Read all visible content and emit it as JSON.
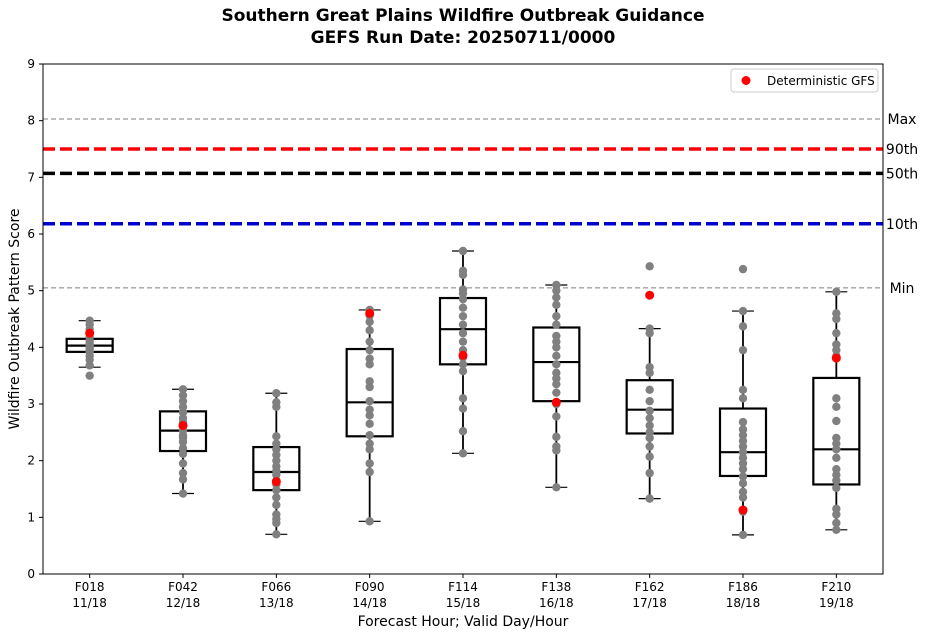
{
  "titles": {
    "line1": "Southern Great Plains Wildfire Outbreak Guidance",
    "line2": "GEFS Run Date: 20250711/0000"
  },
  "chart_data": {
    "type": "box",
    "xlabel": "Forecast Hour; Valid Day/Hour",
    "ylabel": "Wildfire Outbreak Pattern Score",
    "ylim": [
      0,
      9
    ],
    "yticks": [
      0,
      1,
      2,
      3,
      4,
      5,
      6,
      7,
      8,
      9
    ],
    "categories": [
      {
        "hour": "F018",
        "valid": "11/18"
      },
      {
        "hour": "F042",
        "valid": "12/18"
      },
      {
        "hour": "F066",
        "valid": "13/18"
      },
      {
        "hour": "F090",
        "valid": "14/18"
      },
      {
        "hour": "F114",
        "valid": "15/18"
      },
      {
        "hour": "F138",
        "valid": "16/18"
      },
      {
        "hour": "F162",
        "valid": "17/18"
      },
      {
        "hour": "F186",
        "valid": "18/18"
      },
      {
        "hour": "F210",
        "valid": "19/18"
      }
    ],
    "boxes": [
      {
        "whislo": 3.65,
        "q1": 3.92,
        "med": 4.03,
        "q3": 4.15,
        "whishi": 4.47
      },
      {
        "whislo": 1.42,
        "q1": 2.17,
        "med": 2.53,
        "q3": 2.87,
        "whishi": 3.26
      },
      {
        "whislo": 0.7,
        "q1": 1.48,
        "med": 1.8,
        "q3": 2.24,
        "whishi": 3.19
      },
      {
        "whislo": 0.93,
        "q1": 2.43,
        "med": 3.03,
        "q3": 3.97,
        "whishi": 4.66
      },
      {
        "whislo": 2.13,
        "q1": 3.7,
        "med": 4.32,
        "q3": 4.87,
        "whishi": 5.7
      },
      {
        "whislo": 1.53,
        "q1": 3.05,
        "med": 3.74,
        "q3": 4.35,
        "whishi": 5.1
      },
      {
        "whislo": 1.33,
        "q1": 2.48,
        "med": 2.9,
        "q3": 3.42,
        "whishi": 4.33
      },
      {
        "whislo": 0.69,
        "q1": 1.73,
        "med": 2.15,
        "q3": 2.92,
        "whishi": 4.64
      },
      {
        "whislo": 0.78,
        "q1": 1.58,
        "med": 2.2,
        "q3": 3.46,
        "whishi": 4.98
      }
    ],
    "members": [
      [
        3.5,
        3.68,
        3.78,
        3.85,
        3.92,
        3.97,
        4.0,
        4.03,
        4.08,
        4.12,
        4.18,
        4.25,
        4.32,
        4.4,
        4.47
      ],
      [
        1.42,
        1.67,
        1.78,
        1.95,
        2.12,
        2.22,
        2.33,
        2.4,
        2.45,
        2.53,
        2.6,
        2.68,
        2.75,
        2.85,
        2.95,
        3.05,
        3.15,
        3.26
      ],
      [
        0.7,
        0.9,
        0.97,
        1.05,
        1.22,
        1.35,
        1.48,
        1.58,
        1.65,
        1.75,
        1.82,
        1.9,
        2.0,
        2.1,
        2.2,
        2.3,
        2.43,
        2.95,
        3.03,
        3.19
      ],
      [
        0.93,
        1.8,
        1.95,
        2.2,
        2.3,
        2.45,
        2.65,
        2.8,
        2.9,
        3.05,
        3.3,
        3.4,
        3.7,
        3.8,
        3.95,
        4.1,
        4.3,
        4.45,
        4.56,
        4.66
      ],
      [
        2.13,
        2.52,
        2.92,
        3.1,
        3.58,
        3.7,
        3.82,
        3.95,
        4.1,
        4.25,
        4.4,
        4.55,
        4.7,
        4.85,
        4.95,
        5.02,
        5.28,
        5.35,
        5.7
      ],
      [
        1.53,
        2.18,
        2.25,
        2.42,
        2.78,
        3.0,
        3.2,
        3.35,
        3.45,
        3.55,
        3.7,
        3.85,
        4.0,
        4.1,
        4.2,
        4.4,
        4.55,
        4.75,
        4.88,
        5.0,
        5.1
      ],
      [
        1.33,
        1.78,
        2.07,
        2.25,
        2.4,
        2.5,
        2.62,
        2.75,
        2.88,
        3.05,
        3.25,
        3.55,
        3.65,
        4.25,
        4.33,
        5.43
      ],
      [
        0.69,
        1.1,
        1.35,
        1.45,
        1.6,
        1.72,
        1.85,
        1.95,
        2.05,
        2.15,
        2.25,
        2.35,
        2.45,
        2.55,
        2.68,
        3.1,
        3.25,
        3.95,
        4.37,
        4.64,
        5.38
      ],
      [
        0.78,
        0.9,
        1.05,
        1.15,
        1.52,
        1.65,
        1.75,
        1.85,
        2.05,
        2.2,
        2.3,
        2.4,
        2.7,
        2.95,
        3.1,
        3.85,
        3.95,
        4.05,
        4.25,
        4.5,
        4.6,
        4.98
      ]
    ],
    "deterministic": {
      "name": "Deterministic GFS",
      "values": [
        4.25,
        2.62,
        1.63,
        4.6,
        3.86,
        3.03,
        4.92,
        1.13,
        3.81
      ],
      "color": "#ff0000"
    },
    "reference_lines": [
      {
        "label": "Max",
        "value": 8.03,
        "color": "#808080",
        "style": "dashed-thin"
      },
      {
        "label": "90th",
        "value": 7.5,
        "color": "#ff0000",
        "style": "dashed-thick"
      },
      {
        "label": "50th",
        "value": 7.07,
        "color": "#000000",
        "style": "dashed-thick"
      },
      {
        "label": "10th",
        "value": 6.18,
        "color": "#0000cc",
        "style": "dashed-thick"
      },
      {
        "label": "Min",
        "value": 5.05,
        "color": "#808080",
        "style": "dashed-thin"
      }
    ],
    "member_color": "#808080",
    "legend_position": "top-right"
  }
}
